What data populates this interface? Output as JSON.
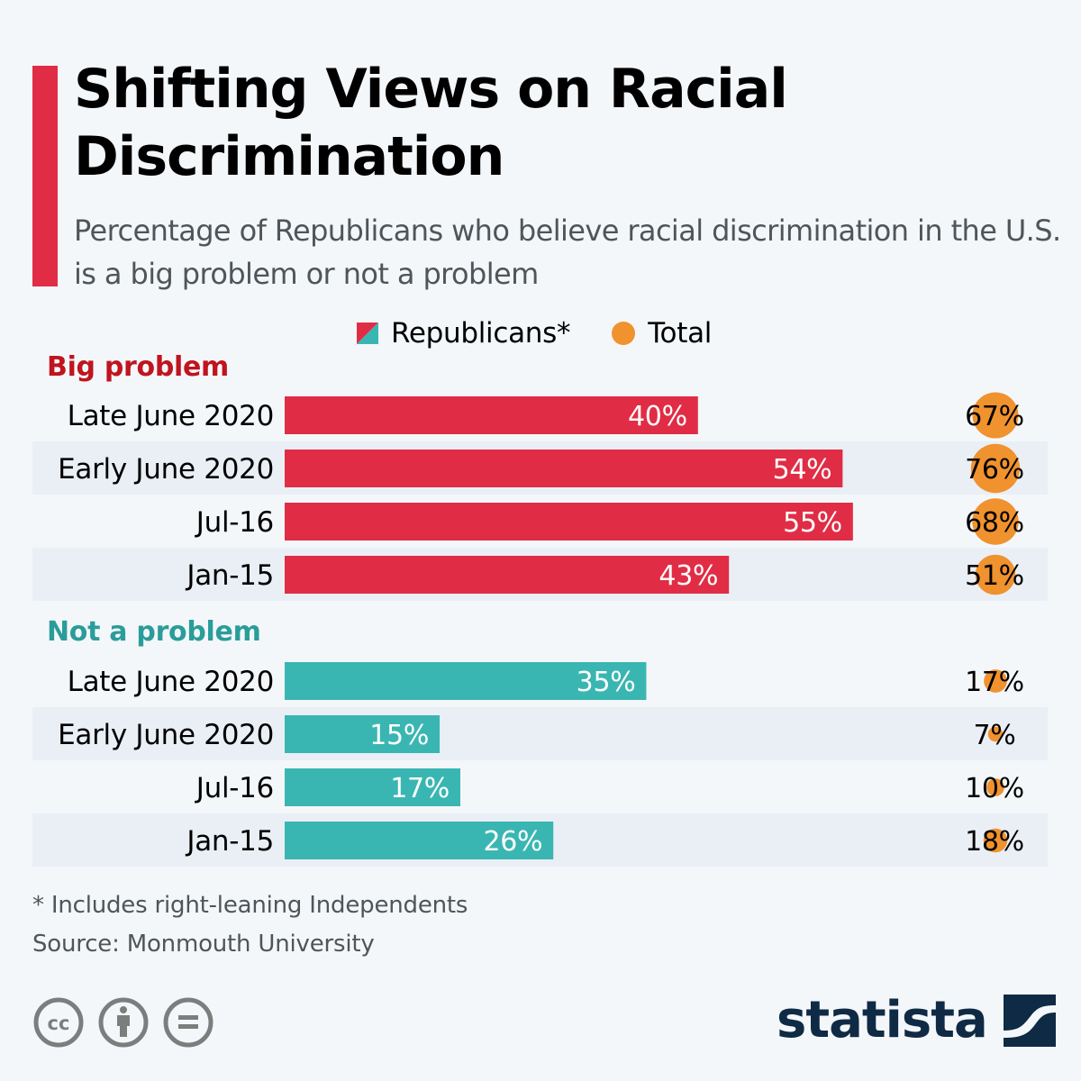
{
  "header": {
    "title": "Shifting Views on Racial Discrimination",
    "subtitle": "Percentage of Republicans who believe racial discrimination in the U.S. is a big problem or not a problem"
  },
  "legend": {
    "republicans_label": "Republicans*",
    "total_label": "Total"
  },
  "colors": {
    "accent": "#e02d45",
    "big_problem_bar": "#e02d45",
    "not_problem_bar": "#3ab6b2",
    "total_dot": "#f0922e",
    "big_problem_heading": "#c0141e",
    "not_problem_heading": "#2a9d9a",
    "row_band": "#eaeff6",
    "brand": "#0f2a44"
  },
  "chart_data": {
    "type": "bar",
    "title": "Shifting Views on Racial Discrimination",
    "subtitle": "Percentage of Republicans who believe racial discrimination in the U.S. is a big problem or not a problem",
    "xlabel": "",
    "ylabel": "",
    "xlim": [
      0,
      100
    ],
    "unit": "%",
    "legend": [
      "Republicans*",
      "Total"
    ],
    "legend_position": "top-center",
    "grid": false,
    "groups": [
      {
        "name": "Big problem",
        "categories": [
          "Late June 2020",
          "Early June 2020",
          "Jul-16",
          "Jan-15"
        ],
        "series": [
          {
            "name": "Republicans*",
            "values": [
              40,
              54,
              55,
              43
            ],
            "labels": [
              "40%",
              "54%",
              "55%",
              "43%"
            ]
          },
          {
            "name": "Total",
            "values": [
              67,
              76,
              68,
              51
            ],
            "labels": [
              "67%",
              "76%",
              "68%",
              "51%"
            ]
          }
        ]
      },
      {
        "name": "Not a problem",
        "categories": [
          "Late June 2020",
          "Early June 2020",
          "Jul-16",
          "Jan-15"
        ],
        "series": [
          {
            "name": "Republicans*",
            "values": [
              35,
              15,
              17,
              26
            ],
            "labels": [
              "35%",
              "15%",
              "17%",
              "26%"
            ]
          },
          {
            "name": "Total",
            "values": [
              17,
              7,
              10,
              18
            ],
            "labels": [
              "17%",
              "7%",
              "10%",
              "18%"
            ]
          }
        ]
      }
    ]
  },
  "footer": {
    "note": "* Includes right-leaning Independents",
    "source": "Source: Monmouth University",
    "license_icons": [
      "cc-icon",
      "attribution-icon",
      "no-derivatives-icon"
    ],
    "brand": "statista"
  }
}
